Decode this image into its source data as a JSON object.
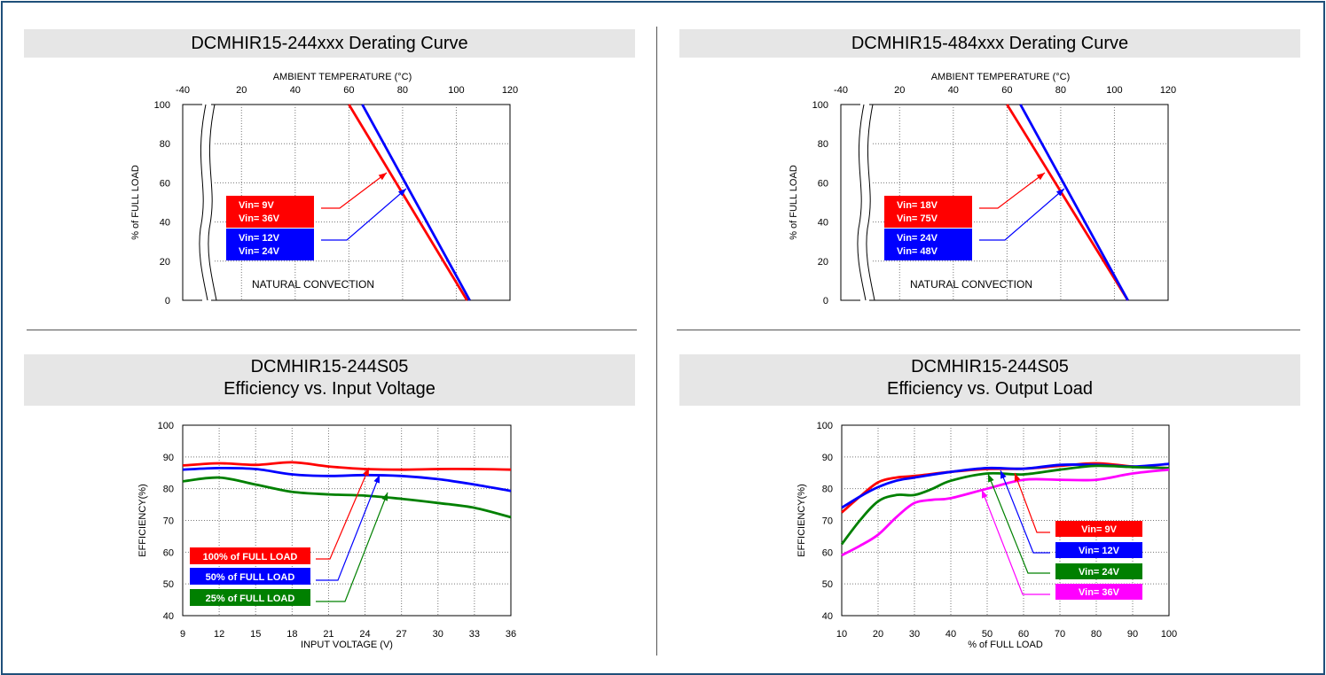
{
  "chart_data": [
    {
      "type": "line",
      "title": "DCMHIR15-244xxx Derating Curve",
      "xlabel": "AMBIENT TEMPERATURE (°C)",
      "ylabel": "% of FULL LOAD",
      "x_ticks": [
        "-40",
        "20",
        "40",
        "60",
        "80",
        "100",
        "120"
      ],
      "y_ticks": [
        "0",
        "20",
        "40",
        "60",
        "80",
        "100"
      ],
      "xlim": [
        10,
        120
      ],
      "ylim": [
        0,
        100
      ],
      "axis_break": true,
      "grid": true,
      "series": [
        {
          "name": "Vin= 9V / Vin= 36V",
          "color": "#ff0000",
          "x": [
            60,
            104
          ],
          "y": [
            100,
            0
          ]
        },
        {
          "name": "Vin= 12V / Vin= 24V",
          "color": "#0000ff",
          "x": [
            65,
            105
          ],
          "y": [
            100,
            0
          ]
        }
      ],
      "legend": [
        {
          "lines": [
            "Vin=   9V",
            "Vin= 36V"
          ],
          "color": "#ff0000"
        },
        {
          "lines": [
            "Vin= 12V",
            "Vin= 24V"
          ],
          "color": "#0000ff"
        }
      ],
      "annotation": "NATURAL CONVECTION"
    },
    {
      "type": "line",
      "title": "DCMHIR15-484xxx Derating Curve",
      "xlabel": "AMBIENT TEMPERATURE (°C)",
      "ylabel": "% of FULL LOAD",
      "x_ticks": [
        "-40",
        "20",
        "40",
        "60",
        "80",
        "100",
        "120"
      ],
      "y_ticks": [
        "0",
        "20",
        "40",
        "60",
        "80",
        "100"
      ],
      "xlim": [
        10,
        120
      ],
      "ylim": [
        0,
        100
      ],
      "axis_break": true,
      "grid": true,
      "series": [
        {
          "name": "Vin= 18V / Vin= 75V",
          "color": "#ff0000",
          "x": [
            60,
            105
          ],
          "y": [
            100,
            0
          ]
        },
        {
          "name": "Vin= 24V / Vin= 48V",
          "color": "#0000ff",
          "x": [
            65,
            105
          ],
          "y": [
            100,
            0
          ]
        }
      ],
      "legend": [
        {
          "lines": [
            "Vin= 18V",
            "Vin= 75V"
          ],
          "color": "#ff0000"
        },
        {
          "lines": [
            "Vin= 24V",
            "Vin= 48V"
          ],
          "color": "#0000ff"
        }
      ],
      "annotation": "NATURAL CONVECTION"
    },
    {
      "type": "line",
      "title": "DCMHIR15-244S05",
      "subtitle": "Efficiency vs. Input Voltage",
      "xlabel": "INPUT VOLTAGE (V)",
      "ylabel": "EFFICIENCY(%)",
      "x_ticks": [
        "9",
        "12",
        "15",
        "18",
        "21",
        "24",
        "27",
        "30",
        "33",
        "36"
      ],
      "y_ticks": [
        "40",
        "50",
        "60",
        "70",
        "80",
        "90",
        "100"
      ],
      "xlim": [
        9,
        36
      ],
      "ylim": [
        40,
        100
      ],
      "grid": true,
      "series": [
        {
          "name": "100% of FULL LOAD",
          "color": "#ff0000",
          "x": [
            9,
            12,
            15,
            18,
            21,
            24,
            27,
            30,
            33,
            36
          ],
          "y": [
            87.3,
            88,
            87.5,
            88.3,
            87,
            86.2,
            86,
            86.2,
            86.2,
            86
          ]
        },
        {
          "name": "50% of FULL LOAD",
          "color": "#0000ff",
          "x": [
            9,
            12,
            15,
            18,
            21,
            24,
            27,
            30,
            33,
            36
          ],
          "y": [
            86,
            86.5,
            86.2,
            84.5,
            84,
            84.3,
            84,
            83,
            81.3,
            79.3
          ]
        },
        {
          "name": "25% of FULL LOAD",
          "color": "#008000",
          "x": [
            9,
            12,
            15,
            18,
            21,
            24,
            27,
            30,
            33,
            36
          ],
          "y": [
            82.3,
            83.5,
            81.3,
            79,
            78.2,
            77.8,
            76.8,
            75.5,
            74,
            71
          ]
        }
      ],
      "legend_labels": [
        "100% of FULL LOAD",
        "50% of FULL LOAD",
        "25% of FULL LOAD"
      ]
    },
    {
      "type": "line",
      "title": "DCMHIR15-244S05",
      "subtitle": "Efficiency vs. Output Load",
      "xlabel": "% of FULL LOAD",
      "ylabel": "EFFICIENCY(%)",
      "x_ticks": [
        "10",
        "20",
        "30",
        "40",
        "50",
        "60",
        "70",
        "80",
        "90",
        "100"
      ],
      "y_ticks": [
        "40",
        "50",
        "60",
        "70",
        "80",
        "90",
        "100"
      ],
      "xlim": [
        10,
        100
      ],
      "ylim": [
        40,
        100
      ],
      "grid": true,
      "series": [
        {
          "name": "Vin= 9V",
          "color": "#ff0000",
          "x": [
            10,
            15,
            20,
            25,
            30,
            40,
            50,
            60,
            70,
            80,
            90,
            100
          ],
          "y": [
            72.5,
            77.5,
            82,
            83.5,
            84,
            85.3,
            86.2,
            86.3,
            87.2,
            88,
            87,
            86.5
          ]
        },
        {
          "name": "Vin= 12V",
          "color": "#0000ff",
          "x": [
            10,
            15,
            20,
            25,
            30,
            40,
            50,
            60,
            70,
            80,
            90,
            100
          ],
          "y": [
            74,
            77.5,
            80.5,
            82.5,
            83.5,
            85.3,
            86.5,
            86.3,
            87.5,
            87.5,
            87,
            87.8
          ]
        },
        {
          "name": "Vin= 24V",
          "color": "#008000",
          "x": [
            10,
            15,
            20,
            25,
            30,
            35,
            40,
            50,
            60,
            70,
            80,
            90,
            100
          ],
          "y": [
            62.5,
            70,
            76,
            78,
            78,
            80,
            82.5,
            84.8,
            84.5,
            86,
            87.2,
            86.8,
            86.5
          ]
        },
        {
          "name": "Vin= 36V",
          "color": "#ff00ff",
          "x": [
            10,
            15,
            20,
            25,
            30,
            35,
            40,
            50,
            60,
            70,
            80,
            90,
            100
          ],
          "y": [
            59,
            62,
            65.5,
            71,
            75.5,
            76.5,
            77,
            80,
            82.8,
            82.8,
            82.8,
            84.8,
            86
          ]
        }
      ],
      "legend_labels": [
        "Vin=  9V",
        "Vin= 12V",
        "Vin= 24V",
        "Vin= 36V"
      ]
    }
  ]
}
